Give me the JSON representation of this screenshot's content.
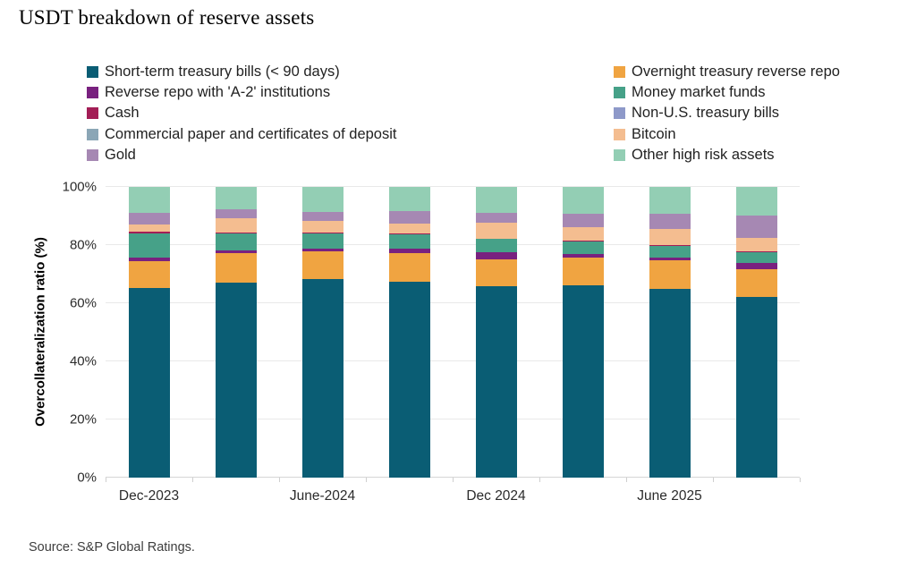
{
  "title": "USDT breakdown of reserve assets",
  "source": "Source: S&P Global Ratings.",
  "legend": {
    "left_column": [
      {
        "label": "Short-term treasury bills (< 90 days)",
        "color": "#0a5d74"
      },
      {
        "label": "Reverse repo with 'A-2' institutions",
        "color": "#79217f"
      },
      {
        "label": "Cash",
        "color": "#a31e56"
      },
      {
        "label": "Commercial paper and certificates of deposit",
        "color": "#8ba6b6"
      },
      {
        "label": "Gold",
        "color": "#a688b3"
      }
    ],
    "right_column": [
      {
        "label": "Overnight treasury reverse repo",
        "color": "#f0a441"
      },
      {
        "label": "Money market funds",
        "color": "#46a188"
      },
      {
        "label": "Non-U.S. treasury bills",
        "color": "#8e99c9"
      },
      {
        "label": "Bitcoin",
        "color": "#f4bd90"
      },
      {
        "label": "Other high risk assets",
        "color": "#93ceb4"
      }
    ]
  },
  "chart_data": {
    "type": "bar",
    "subtype": "stacked-percent",
    "title": "USDT breakdown of reserve assets",
    "xlabel": "",
    "ylabel": "Overcollateralization ratio (%)",
    "ylim": [
      0,
      100
    ],
    "y_ticks": [
      "0%",
      "20%",
      "40%",
      "60%",
      "80%",
      "100%"
    ],
    "grid": true,
    "legend_position": "top",
    "categories": [
      "Dec-2023",
      "",
      "June-2024",
      "",
      "Dec 2024",
      "",
      "June 2025",
      ""
    ],
    "series": [
      {
        "key": "short-term-treasury-bills",
        "name": "Short-term treasury bills (< 90 days)",
        "color": "#0a5d74",
        "values": [
          65.2,
          67.2,
          68.2,
          67.4,
          65.8,
          66.1,
          64.8,
          62.2
        ]
      },
      {
        "key": "overnight-treasury-reverse-repo",
        "name": "Overnight treasury reverse repo",
        "color": "#f0a441",
        "values": [
          9.2,
          9.9,
          9.6,
          9.9,
          9.2,
          9.5,
          10.0,
          9.5
        ]
      },
      {
        "key": "reverse-repo-a2-institutions",
        "name": "Reverse repo with 'A-2' institutions",
        "color": "#79217f",
        "values": [
          1.3,
          1.1,
          1.0,
          1.5,
          2.5,
          1.2,
          1.0,
          2.1
        ]
      },
      {
        "key": "money-market-funds",
        "name": "Money market funds",
        "color": "#46a188",
        "values": [
          8.3,
          5.8,
          5.1,
          4.9,
          4.6,
          4.4,
          3.8,
          3.7
        ]
      },
      {
        "key": "cash",
        "name": "Cash",
        "color": "#a31e56",
        "values": [
          0.6,
          0.2,
          0.3,
          0.2,
          0.2,
          0.3,
          0.3,
          0.3
        ]
      },
      {
        "key": "non-us-treasury-bills",
        "name": "Non-U.S. treasury bills",
        "color": "#8e99c9",
        "values": [
          0,
          0,
          0,
          0,
          0,
          0,
          0,
          0
        ]
      },
      {
        "key": "commercial-paper-and-cds",
        "name": "Commercial paper and certificates of deposit",
        "color": "#8ba6b6",
        "values": [
          0,
          0,
          0,
          0,
          0,
          0,
          0,
          0
        ]
      },
      {
        "key": "bitcoin",
        "name": "Bitcoin",
        "color": "#f4bd90",
        "values": [
          2.6,
          4.9,
          4.1,
          3.4,
          5.5,
          4.8,
          5.5,
          4.7
        ]
      },
      {
        "key": "gold",
        "name": "Gold",
        "color": "#a688b3",
        "values": [
          3.8,
          3.3,
          3.2,
          4.3,
          3.4,
          4.6,
          5.5,
          7.7
        ]
      },
      {
        "key": "other-high-risk-assets",
        "name": "Other high risk assets",
        "color": "#93ceb4",
        "values": [
          9.0,
          7.6,
          8.5,
          8.4,
          8.8,
          9.1,
          9.1,
          9.8
        ]
      }
    ]
  }
}
